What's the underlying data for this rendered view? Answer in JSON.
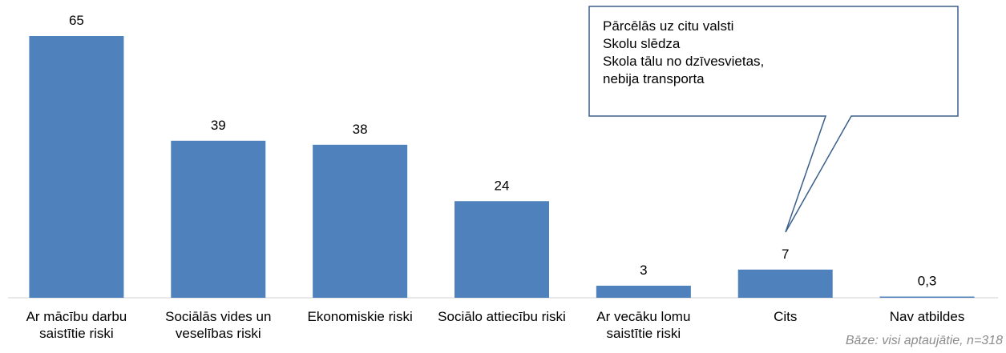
{
  "chart_data": {
    "type": "bar",
    "categories": [
      "Ar mācību darbu saistītie riski",
      "Sociālās vides un veselības riski",
      "Ekonomiskie riski",
      "Sociālo attiecību riski",
      "Ar vecāku lomu saistītie riski",
      "Cits",
      "Nav atbildes"
    ],
    "values": [
      65,
      39,
      38,
      24,
      3,
      7,
      0.3
    ],
    "value_labels": [
      "65",
      "39",
      "38",
      "24",
      "3",
      "7",
      "0,3"
    ],
    "color": "#4f81bd",
    "annotation": [
      "Pārcēlās uz citu valsti",
      "Skolu slēdza",
      "Skola tālu no dzīvesvietas,",
      "nebija transporta"
    ],
    "footnote": "Bāze: visi aptaujātie, n=318"
  }
}
